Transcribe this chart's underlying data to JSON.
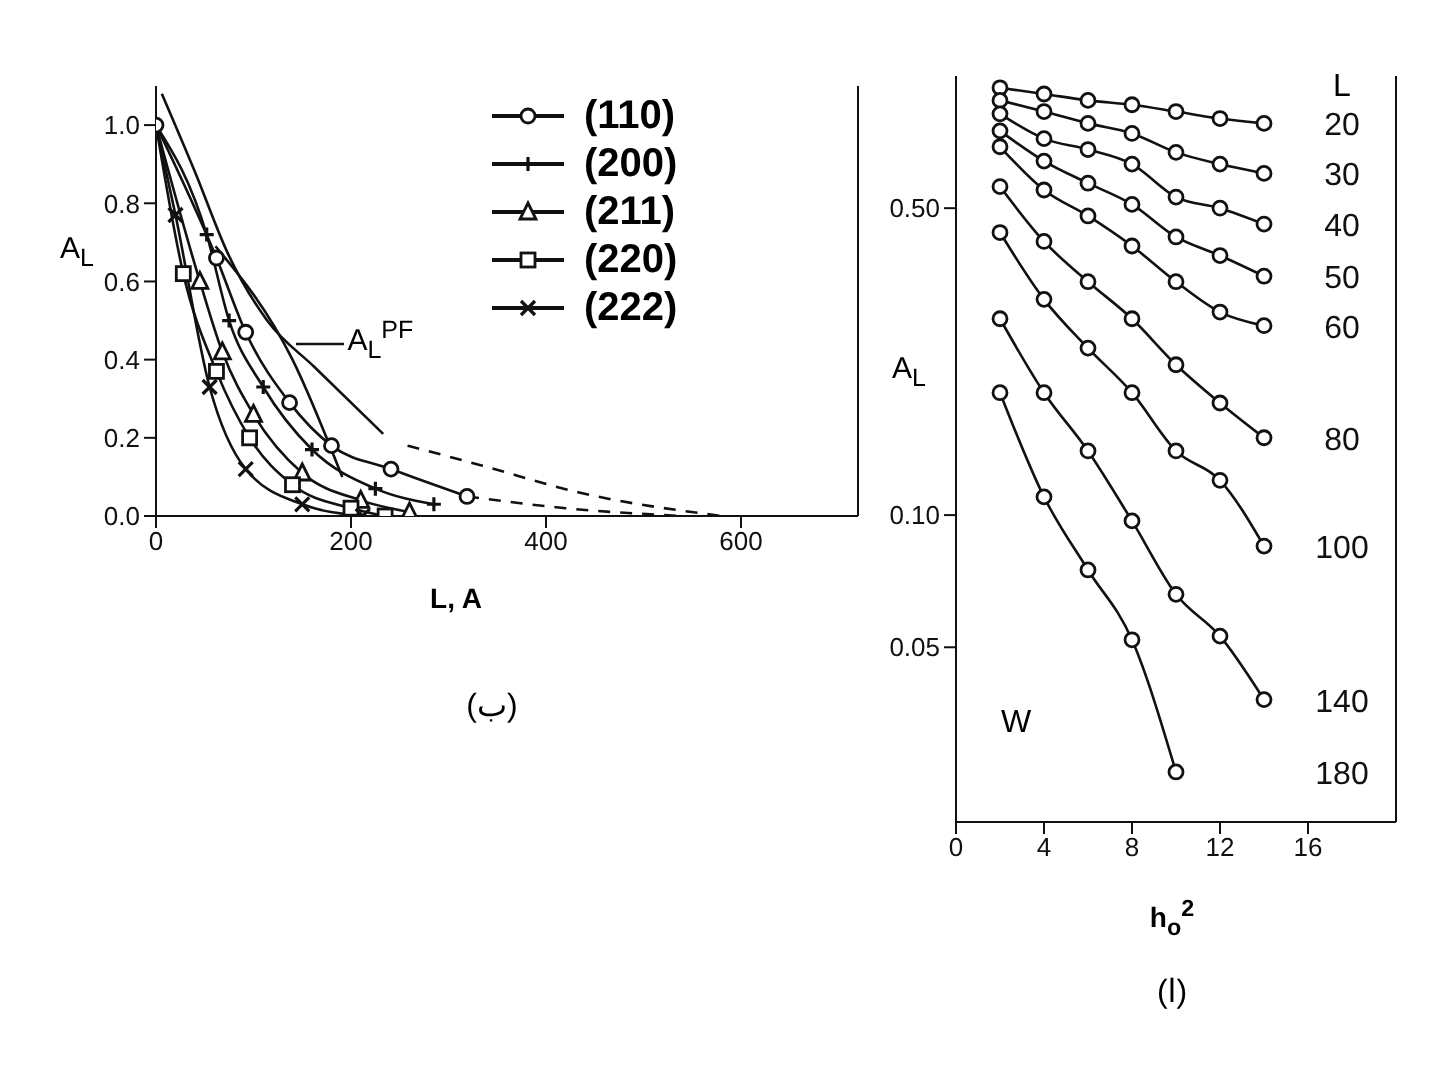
{
  "chart_data": [
    {
      "type": "line",
      "xlabel": "L, A",
      "ylabel": "A$_{L}$",
      "xlim": [
        0,
        720
      ],
      "xticks": [
        0,
        200,
        400,
        600
      ],
      "ylim": [
        0,
        1.1
      ],
      "yticks": [
        {
          "value": 0,
          "label": "0.0"
        },
        0.2,
        0.4,
        0.6,
        0.8,
        {
          "value": 1,
          "label": "1.0"
        }
      ],
      "legend": "top right",
      "annotations": [
        {
          "text": "A$_{L}$$^{PF}$",
          "x": 143,
          "y": 0.44
        },
        "(ب)"
      ],
      "series": [
        {
          "name": "(110)",
          "color": "#111111",
          "marker": "circle",
          "x": [
            0,
            62,
            92,
            137,
            180,
            241,
            319
          ],
          "values": [
            1.0,
            0.66,
            0.47,
            0.29,
            0.18,
            0.12,
            0.05
          ]
        },
        {
          "name": "(200)",
          "color": "#111111",
          "marker": "cross",
          "x": [
            0,
            52,
            75,
            110,
            160,
            225,
            285
          ],
          "values": [
            1.0,
            0.72,
            0.5,
            0.33,
            0.17,
            0.07,
            0.03
          ]
        },
        {
          "name": "(211)",
          "color": "#111111",
          "marker": "triangle",
          "x": [
            0,
            45,
            68,
            100,
            150,
            210,
            260
          ],
          "values": [
            1.0,
            0.6,
            0.42,
            0.26,
            0.11,
            0.04,
            0.01
          ]
        },
        {
          "name": "(220)",
          "color": "#111111",
          "marker": "square",
          "x": [
            0,
            28,
            62,
            96,
            140,
            200,
            235
          ],
          "values": [
            1.0,
            0.62,
            0.37,
            0.2,
            0.08,
            0.02,
            0
          ]
        },
        {
          "name": "(222)",
          "color": "#111111",
          "marker": "x",
          "x": [
            0,
            20,
            55,
            92,
            150,
            212
          ],
          "values": [
            1.0,
            0.77,
            0.33,
            0.12,
            0.03,
            0
          ]
        },
        {
          "color": "#111111",
          "marker": "none",
          "x": [
            6,
            40,
            74,
            114,
            163,
            233
          ],
          "values": [
            1.08,
            0.88,
            0.67,
            0.5,
            0.38,
            0.21
          ]
        },
        {
          "color": "#111111",
          "marker": "none",
          "line_style": "dashed",
          "x": [
            258,
            333,
            434,
            580
          ],
          "values": [
            0.18,
            0.13,
            0.06,
            0
          ]
        },
        {
          "color": "#111111",
          "marker": "none",
          "line_style": "dashed",
          "x": [
            319,
            420,
            537
          ],
          "values": [
            0.05,
            0.02,
            0
          ]
        },
        {
          "color": "#111111",
          "marker": "none",
          "x": [
            61,
            140,
            191
          ],
          "values": [
            0.69,
            0.4,
            0.1
          ]
        }
      ]
    },
    {
      "type": "line",
      "log": "y",
      "xlabel": "h$_{o}$$^{2}$",
      "ylabel": "A$_{L}$",
      "xlim": [
        0,
        20
      ],
      "xticks": [
        0,
        4,
        8,
        12,
        16
      ],
      "ylim": [
        0.02,
        1.0
      ],
      "yticks": [
        0.05,
        {
          "value": 0.1,
          "label": "0.10"
        },
        {
          "value": 0.5,
          "label": "0.50"
        }
      ],
      "marker": "circle",
      "legend_title": "L",
      "annotations": [
        "W",
        "(ا)"
      ],
      "x": [
        2,
        4,
        6,
        8,
        10,
        12,
        14
      ],
      "series": [
        {
          "name": "20",
          "color": "#111111",
          "values": [
            0.94,
            0.91,
            0.88,
            0.86,
            0.83,
            0.8,
            0.78
          ]
        },
        {
          "name": "30",
          "color": "#111111",
          "values": [
            0.88,
            0.83,
            0.78,
            0.74,
            0.67,
            0.63,
            0.6
          ]
        },
        {
          "name": "40",
          "color": "#111111",
          "values": [
            0.82,
            0.72,
            0.68,
            0.63,
            0.53,
            0.5,
            0.46
          ]
        },
        {
          "name": "50",
          "color": "#111111",
          "values": [
            0.75,
            0.64,
            0.57,
            0.51,
            0.43,
            0.39,
            0.35
          ]
        },
        {
          "name": "60",
          "color": "#111111",
          "values": [
            0.69,
            0.55,
            0.48,
            0.41,
            0.34,
            0.29,
            0.27
          ]
        },
        {
          "name": "80",
          "color": "#111111",
          "values": [
            0.56,
            0.42,
            0.34,
            0.28,
            0.22,
            0.18,
            0.15
          ]
        },
        {
          "name": "100",
          "color": "#111111",
          "values": [
            0.44,
            0.31,
            0.24,
            0.19,
            0.14,
            0.12,
            0.085
          ]
        },
        {
          "name": "140",
          "color": "#111111",
          "values": [
            0.28,
            0.19,
            0.14,
            0.097,
            0.066,
            0.053,
            0.038
          ]
        },
        {
          "name": "180",
          "color": "#111111",
          "x": [
            2,
            4,
            6,
            8,
            10
          ],
          "values": [
            0.19,
            0.11,
            0.075,
            0.052,
            0.026
          ]
        }
      ]
    }
  ]
}
